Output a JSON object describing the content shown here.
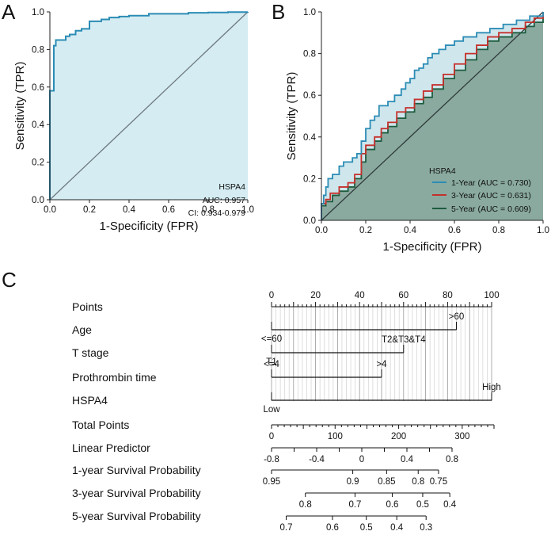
{
  "panels": {
    "a": "A",
    "b": "B",
    "c": "C"
  },
  "colors": {
    "roc_a": "#2b8cb5",
    "fill_a": "#d4ecf2",
    "diag": "#6f7a7f",
    "one_year": "#2b8cb5",
    "three_year": "#c5302b",
    "five_year": "#1d5c3e",
    "fill_b_light": "#cfe6ec",
    "fill_b_dark": "#8aaaa0"
  },
  "chart_data": [
    {
      "type": "line",
      "title": "",
      "xlabel": "1-Specificity (FPR)",
      "ylabel": "Sensitivity (TPR)",
      "xlim": [
        0,
        1
      ],
      "ylim": [
        0,
        1
      ],
      "xticks": [
        "0.0",
        "0.2",
        "0.4",
        "0.6",
        "0.8",
        "1.0"
      ],
      "yticks": [
        "0.0",
        "0.2",
        "0.4",
        "0.6",
        "0.8",
        "1.0"
      ],
      "legend": {
        "title": "HSPA4",
        "lines": [
          "AUC: 0.957",
          "CI: 0.934-0.979"
        ]
      },
      "series": [
        {
          "name": "HSPA4",
          "points": [
            [
              0,
              0
            ],
            [
              0,
              0.58
            ],
            [
              0.02,
              0.58
            ],
            [
              0.02,
              0.82
            ],
            [
              0.03,
              0.85
            ],
            [
              0.07,
              0.85
            ],
            [
              0.08,
              0.87
            ],
            [
              0.1,
              0.88
            ],
            [
              0.12,
              0.88
            ],
            [
              0.13,
              0.9
            ],
            [
              0.16,
              0.91
            ],
            [
              0.18,
              0.91
            ],
            [
              0.2,
              0.92
            ],
            [
              0.2,
              0.95
            ],
            [
              0.26,
              0.96
            ],
            [
              0.3,
              0.97
            ],
            [
              0.35,
              0.975
            ],
            [
              0.4,
              0.98
            ],
            [
              0.5,
              0.99
            ],
            [
              0.6,
              0.99
            ],
            [
              0.7,
              0.995
            ],
            [
              0.8,
              0.997
            ],
            [
              0.9,
              0.999
            ],
            [
              1,
              1
            ]
          ]
        }
      ]
    },
    {
      "type": "line",
      "title": "",
      "xlabel": "1-Specificity (FPR)",
      "ylabel": "Sensitivity (TPR)",
      "xlim": [
        0,
        1
      ],
      "ylim": [
        0,
        1
      ],
      "xticks": [
        "0.0",
        "0.2",
        "0.4",
        "0.6",
        "0.8",
        "1.0"
      ],
      "yticks": [
        "0.0",
        "0.2",
        "0.4",
        "0.6",
        "0.8",
        "1.0"
      ],
      "legend": {
        "title": "HSPA4",
        "entries": [
          "1-Year (AUC = 0.730)",
          "3-Year (AUC = 0.631)",
          "5-Year (AUC = 0.609)"
        ]
      },
      "series": [
        {
          "name": "1-Year (AUC = 0.730)",
          "points": [
            [
              0,
              0
            ],
            [
              0,
              0.08
            ],
            [
              0.01,
              0.12
            ],
            [
              0.02,
              0.16
            ],
            [
              0.03,
              0.2
            ],
            [
              0.05,
              0.22
            ],
            [
              0.08,
              0.26
            ],
            [
              0.1,
              0.28
            ],
            [
              0.14,
              0.3
            ],
            [
              0.16,
              0.32
            ],
            [
              0.18,
              0.38
            ],
            [
              0.2,
              0.44
            ],
            [
              0.22,
              0.48
            ],
            [
              0.24,
              0.5
            ],
            [
              0.26,
              0.55
            ],
            [
              0.3,
              0.57
            ],
            [
              0.33,
              0.6
            ],
            [
              0.36,
              0.63
            ],
            [
              0.38,
              0.66
            ],
            [
              0.4,
              0.68
            ],
            [
              0.42,
              0.72
            ],
            [
              0.44,
              0.73
            ],
            [
              0.46,
              0.75
            ],
            [
              0.48,
              0.78
            ],
            [
              0.5,
              0.8
            ],
            [
              0.53,
              0.82
            ],
            [
              0.56,
              0.84
            ],
            [
              0.6,
              0.86
            ],
            [
              0.64,
              0.88
            ],
            [
              0.7,
              0.9
            ],
            [
              0.76,
              0.92
            ],
            [
              0.82,
              0.94
            ],
            [
              0.88,
              0.96
            ],
            [
              0.94,
              0.98
            ],
            [
              1,
              1
            ]
          ]
        },
        {
          "name": "3-Year (AUC = 0.631)",
          "points": [
            [
              0,
              0
            ],
            [
              0,
              0.08
            ],
            [
              0.02,
              0.1
            ],
            [
              0.04,
              0.13
            ],
            [
              0.08,
              0.16
            ],
            [
              0.12,
              0.18
            ],
            [
              0.15,
              0.22
            ],
            [
              0.18,
              0.32
            ],
            [
              0.2,
              0.36
            ],
            [
              0.24,
              0.4
            ],
            [
              0.27,
              0.44
            ],
            [
              0.3,
              0.47
            ],
            [
              0.34,
              0.52
            ],
            [
              0.38,
              0.54
            ],
            [
              0.42,
              0.58
            ],
            [
              0.46,
              0.62
            ],
            [
              0.5,
              0.65
            ],
            [
              0.55,
              0.7
            ],
            [
              0.6,
              0.75
            ],
            [
              0.65,
              0.8
            ],
            [
              0.7,
              0.84
            ],
            [
              0.75,
              0.88
            ],
            [
              0.8,
              0.9
            ],
            [
              0.86,
              0.92
            ],
            [
              0.92,
              0.95
            ],
            [
              0.96,
              0.97
            ],
            [
              1,
              1
            ]
          ]
        },
        {
          "name": "5-Year (AUC = 0.609)",
          "points": [
            [
              0,
              0
            ],
            [
              0,
              0.07
            ],
            [
              0.02,
              0.09
            ],
            [
              0.05,
              0.12
            ],
            [
              0.08,
              0.14
            ],
            [
              0.12,
              0.16
            ],
            [
              0.15,
              0.2
            ],
            [
              0.18,
              0.28
            ],
            [
              0.2,
              0.34
            ],
            [
              0.24,
              0.38
            ],
            [
              0.27,
              0.42
            ],
            [
              0.3,
              0.45
            ],
            [
              0.34,
              0.49
            ],
            [
              0.38,
              0.52
            ],
            [
              0.42,
              0.56
            ],
            [
              0.46,
              0.59
            ],
            [
              0.5,
              0.63
            ],
            [
              0.55,
              0.68
            ],
            [
              0.6,
              0.72
            ],
            [
              0.65,
              0.77
            ],
            [
              0.7,
              0.82
            ],
            [
              0.75,
              0.86
            ],
            [
              0.8,
              0.88
            ],
            [
              0.86,
              0.9
            ],
            [
              0.92,
              0.93
            ],
            [
              0.96,
              0.95
            ],
            [
              1,
              1
            ]
          ]
        }
      ]
    },
    {
      "type": "nomogram",
      "title": "",
      "scales": [
        {
          "id": "points",
          "label": "Points",
          "range": [
            0,
            100
          ],
          "labels": [
            {
              "v": 0,
              "t": "0"
            },
            {
              "v": 20,
              "t": "20"
            },
            {
              "v": 40,
              "t": "40"
            },
            {
              "v": 60,
              "t": "60"
            },
            {
              "v": 80,
              "t": "80"
            },
            {
              "v": 100,
              "t": "100"
            }
          ],
          "minor": 2
        },
        {
          "id": "age",
          "label": "Age",
          "range": [
            0,
            84
          ],
          "left": "<=60",
          "right": ">60"
        },
        {
          "id": "tstage",
          "label": "T stage",
          "range": [
            0,
            60
          ],
          "left": "T1",
          "right": "T2&T3&T4"
        },
        {
          "id": "pt",
          "label": "Prothrombin time",
          "range": [
            0,
            50
          ],
          "left": "<=4",
          "right": ">4"
        },
        {
          "id": "hspa4",
          "label": "HSPA4",
          "range": [
            0,
            100
          ],
          "left": "Low",
          "right": "High"
        },
        {
          "id": "total",
          "label": "Total Points",
          "range": [
            0,
            350
          ],
          "labels": [
            {
              "v": 0,
              "t": "0"
            },
            {
              "v": 100,
              "t": "100"
            },
            {
              "v": 200,
              "t": "200"
            },
            {
              "v": 300,
              "t": "300"
            }
          ],
          "minor": 10
        },
        {
          "id": "lp",
          "label": "Linear Predictor",
          "range": [
            -0.8,
            0.8
          ],
          "labels": [
            {
              "v": -0.8,
              "t": "-0.8"
            },
            {
              "v": -0.4,
              "t": "-0.4"
            },
            {
              "v": 0,
              "t": "0"
            },
            {
              "v": 0.4,
              "t": "0.4"
            },
            {
              "v": 0.8,
              "t": "0.8"
            }
          ],
          "minor": 0.2
        },
        {
          "id": "s1",
          "label": "1-year Survival Probability",
          "labels": [
            {
              "lp": -0.8,
              "t": "0.95"
            },
            {
              "lp": -0.08,
              "t": "0.9"
            },
            {
              "lp": 0.22,
              "t": "0.85"
            },
            {
              "lp": 0.5,
              "t": "0.8"
            },
            {
              "lp": 0.68,
              "t": "0.75"
            }
          ]
        },
        {
          "id": "s3",
          "label": "3-year Survival Probability",
          "labels": [
            {
              "lp": -0.5,
              "t": "0.8"
            },
            {
              "lp": -0.06,
              "t": "0.7"
            },
            {
              "lp": 0.27,
              "t": "0.6"
            },
            {
              "lp": 0.54,
              "t": "0.5"
            },
            {
              "lp": 0.78,
              "t": "0.4"
            }
          ]
        },
        {
          "id": "s5",
          "label": "5-year Survival Probability",
          "labels": [
            {
              "lp": -0.67,
              "t": "0.7"
            },
            {
              "lp": -0.26,
              "t": "0.6"
            },
            {
              "lp": 0.04,
              "t": "0.5"
            },
            {
              "lp": 0.31,
              "t": "0.4"
            },
            {
              "lp": 0.57,
              "t": "0.3"
            }
          ]
        }
      ]
    }
  ]
}
